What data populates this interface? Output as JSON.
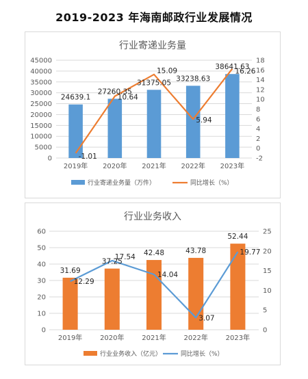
{
  "page_title": "2019-2023 年海南邮政行业发展情况",
  "chart_data": [
    {
      "type": "bar",
      "title": "行业寄递业务量",
      "categories": [
        "2019年",
        "2020年",
        "2021年",
        "2022年",
        "2023年"
      ],
      "series": [
        {
          "name": "行业寄递业务量（万件）",
          "kind": "bar",
          "axis": "left",
          "color": "#5B9BD5",
          "values": [
            24639.1,
            27260.35,
            31375.05,
            33238.63,
            38641.63
          ],
          "labels": [
            "24639.1",
            "27260.35",
            "31375.05",
            "33238.63",
            "38641.63"
          ]
        },
        {
          "name": "同比增长（%）",
          "kind": "line",
          "axis": "right",
          "color": "#ED7D31",
          "values": [
            -1.01,
            10.64,
            15.09,
            5.94,
            16.26
          ],
          "labels": [
            "-1.01",
            "10.64",
            "15.09",
            "5.94",
            "16.26"
          ]
        }
      ],
      "ylim_left": [
        0,
        45000
      ],
      "yticks_left": [
        0,
        5000,
        10000,
        15000,
        20000,
        25000,
        30000,
        35000,
        40000,
        45000
      ],
      "ylim_right": [
        -2,
        18
      ],
      "yticks_right": [
        -2,
        0,
        2,
        4,
        6,
        8,
        10,
        12,
        14,
        16,
        18
      ],
      "grid": true,
      "legend": "bottom"
    },
    {
      "type": "bar",
      "title": "行业业务收入",
      "categories": [
        "2019年",
        "2020年",
        "2021年",
        "2022年",
        "2023年"
      ],
      "series": [
        {
          "name": "行业业务收入（亿元）",
          "kind": "bar",
          "axis": "left",
          "color": "#ED7D31",
          "values": [
            31.69,
            37.25,
            42.48,
            43.78,
            52.44
          ],
          "labels": [
            "31.69",
            "37.25",
            "42.48",
            "43.78",
            "52.44"
          ]
        },
        {
          "name": "同比增长（%）",
          "kind": "line",
          "axis": "right",
          "color": "#5B9BD5",
          "values": [
            12.29,
            17.54,
            14.04,
            3.07,
            19.77
          ],
          "labels": [
            "12.29",
            "17.54",
            "14.04",
            "3.07",
            "19.77"
          ]
        }
      ],
      "ylim_left": [
        0,
        60
      ],
      "yticks_left": [
        0,
        10,
        20,
        30,
        40,
        50,
        60
      ],
      "ylim_right": [
        0,
        25
      ],
      "yticks_right": [
        0,
        5,
        10,
        15,
        20,
        25
      ],
      "grid": true,
      "legend": "bottom"
    }
  ]
}
